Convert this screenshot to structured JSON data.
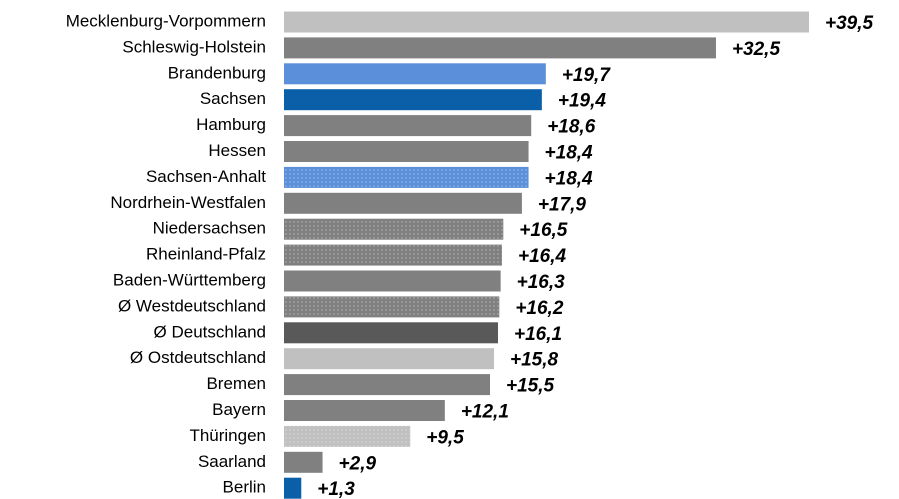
{
  "chart_data": {
    "type": "barh",
    "categories": [
      "Mecklenburg-Vorpommern",
      "Schleswig-Holstein",
      "Brandenburg",
      "Sachsen",
      "Hamburg",
      "Hessen",
      "Sachsen-Anhalt",
      "Nordrhein-Westfalen",
      "Niedersachsen",
      "Rheinland-Pfalz",
      "Baden-Württemberg",
      "Ø Westdeutschland",
      "Ø Deutschland",
      "Ø Ostdeutschland",
      "Bremen",
      "Bayern",
      "Thüringen",
      "Saarland",
      "Berlin"
    ],
    "values": [
      39.5,
      32.5,
      19.7,
      19.4,
      18.6,
      18.4,
      18.4,
      17.9,
      16.5,
      16.4,
      16.3,
      16.2,
      16.1,
      15.8,
      15.5,
      12.1,
      9.5,
      2.9,
      1.3
    ],
    "value_labels": [
      "+39,5",
      "+32,5",
      "+19,7",
      "+19,4",
      "+18,6",
      "+18,4",
      "+18,4",
      "+17,9",
      "+16,5",
      "+16,4",
      "+16,3",
      "+16,2",
      "+16,1",
      "+15,8",
      "+15,5",
      "+12,1",
      "+9,5",
      "+2,9",
      "+1,3"
    ],
    "colors": [
      "#c0c0c0",
      "#808080",
      "#5b8fd9",
      "#0a5fa8",
      "#808080",
      "#808080",
      "#5b8fd9",
      "#808080",
      "#808080",
      "#808080",
      "#808080",
      "#808080",
      "#595959",
      "#c0c0c0",
      "#808080",
      "#808080",
      "#c0c0c0",
      "#808080",
      "#0a5fa8"
    ],
    "dotted": [
      false,
      false,
      false,
      false,
      false,
      false,
      true,
      false,
      true,
      true,
      false,
      true,
      false,
      false,
      false,
      false,
      true,
      false,
      false
    ]
  }
}
